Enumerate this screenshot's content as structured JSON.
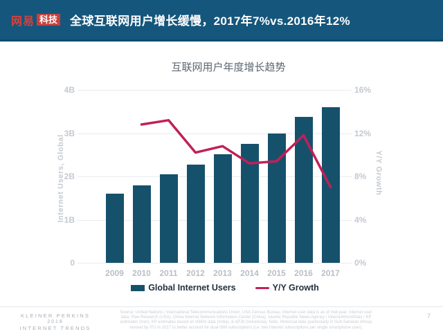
{
  "header": {
    "logo": {
      "brand": "网易",
      "sub": "科技"
    },
    "title": "全球互联网用户增长缓慢，2017年7%vs.2016年12%",
    "bar_color": "#15567C",
    "logo_red": "#C8403D"
  },
  "chart_data": {
    "type": "bar+line",
    "title": "互联网用户年度增长趋势",
    "categories": [
      "2009",
      "2010",
      "2011",
      "2012",
      "2013",
      "2014",
      "2015",
      "2016",
      "2017"
    ],
    "series": [
      {
        "name": "Global Internet Users",
        "type": "bar",
        "axis": "left",
        "unit": "B",
        "color": "#16516C",
        "values": [
          1.6,
          1.8,
          2.05,
          2.27,
          2.52,
          2.75,
          3.0,
          3.37,
          3.6
        ]
      },
      {
        "name": "Y/Y Growth",
        "type": "line",
        "axis": "right",
        "unit": "%",
        "color": "#C12057",
        "start_index": 1,
        "x": [
          "2010",
          "2011",
          "2012",
          "2013",
          "2014",
          "2015",
          "2016",
          "2017"
        ],
        "values": [
          12.8,
          13.2,
          10.2,
          10.8,
          9.2,
          9.4,
          11.8,
          7.0
        ]
      }
    ],
    "left_axis": {
      "label": "Internet Users, Global",
      "min": 0,
      "max": 4,
      "ticks": [
        "4B",
        "3B",
        "2B",
        "1B",
        "0"
      ]
    },
    "right_axis": {
      "label": "Y/Y Growth",
      "min": 0,
      "max": 16,
      "ticks": [
        "16%",
        "12%",
        "8%",
        "4%",
        "0%"
      ]
    },
    "legend": [
      {
        "label": "Global Internet Users",
        "swatch": "rect",
        "color": "#16516C"
      },
      {
        "label": "Y/Y Growth",
        "swatch": "line",
        "color": "#C12057"
      }
    ],
    "grid": "horizontal",
    "legend_position": "bottom-center"
  },
  "footer": {
    "brand_lines": [
      "KLEINER PERKINS",
      "2018",
      "INTERNET TRENDS"
    ],
    "source_lines": [
      "Source: United Nations / International Telecommunications Union, USA Census Bureau. Internet user data is as of mid-year. Internet user",
      "data: Pew Research (USA), China Internet Network Information Center (China), Islamic Republic News Agency / InternetWorldStats / KP",
      "estimates (Iran), KP estimates based on IAMAI data (India), & APJII (Indonesia). Note: Historical data (particularly in Sub-Saharan Africa)",
      "revised by ITU in 2017 to better account for dual-SIM subscriptions (i.e. two Internet subscriptions per single smartphone user)."
    ],
    "page_number": "7"
  }
}
